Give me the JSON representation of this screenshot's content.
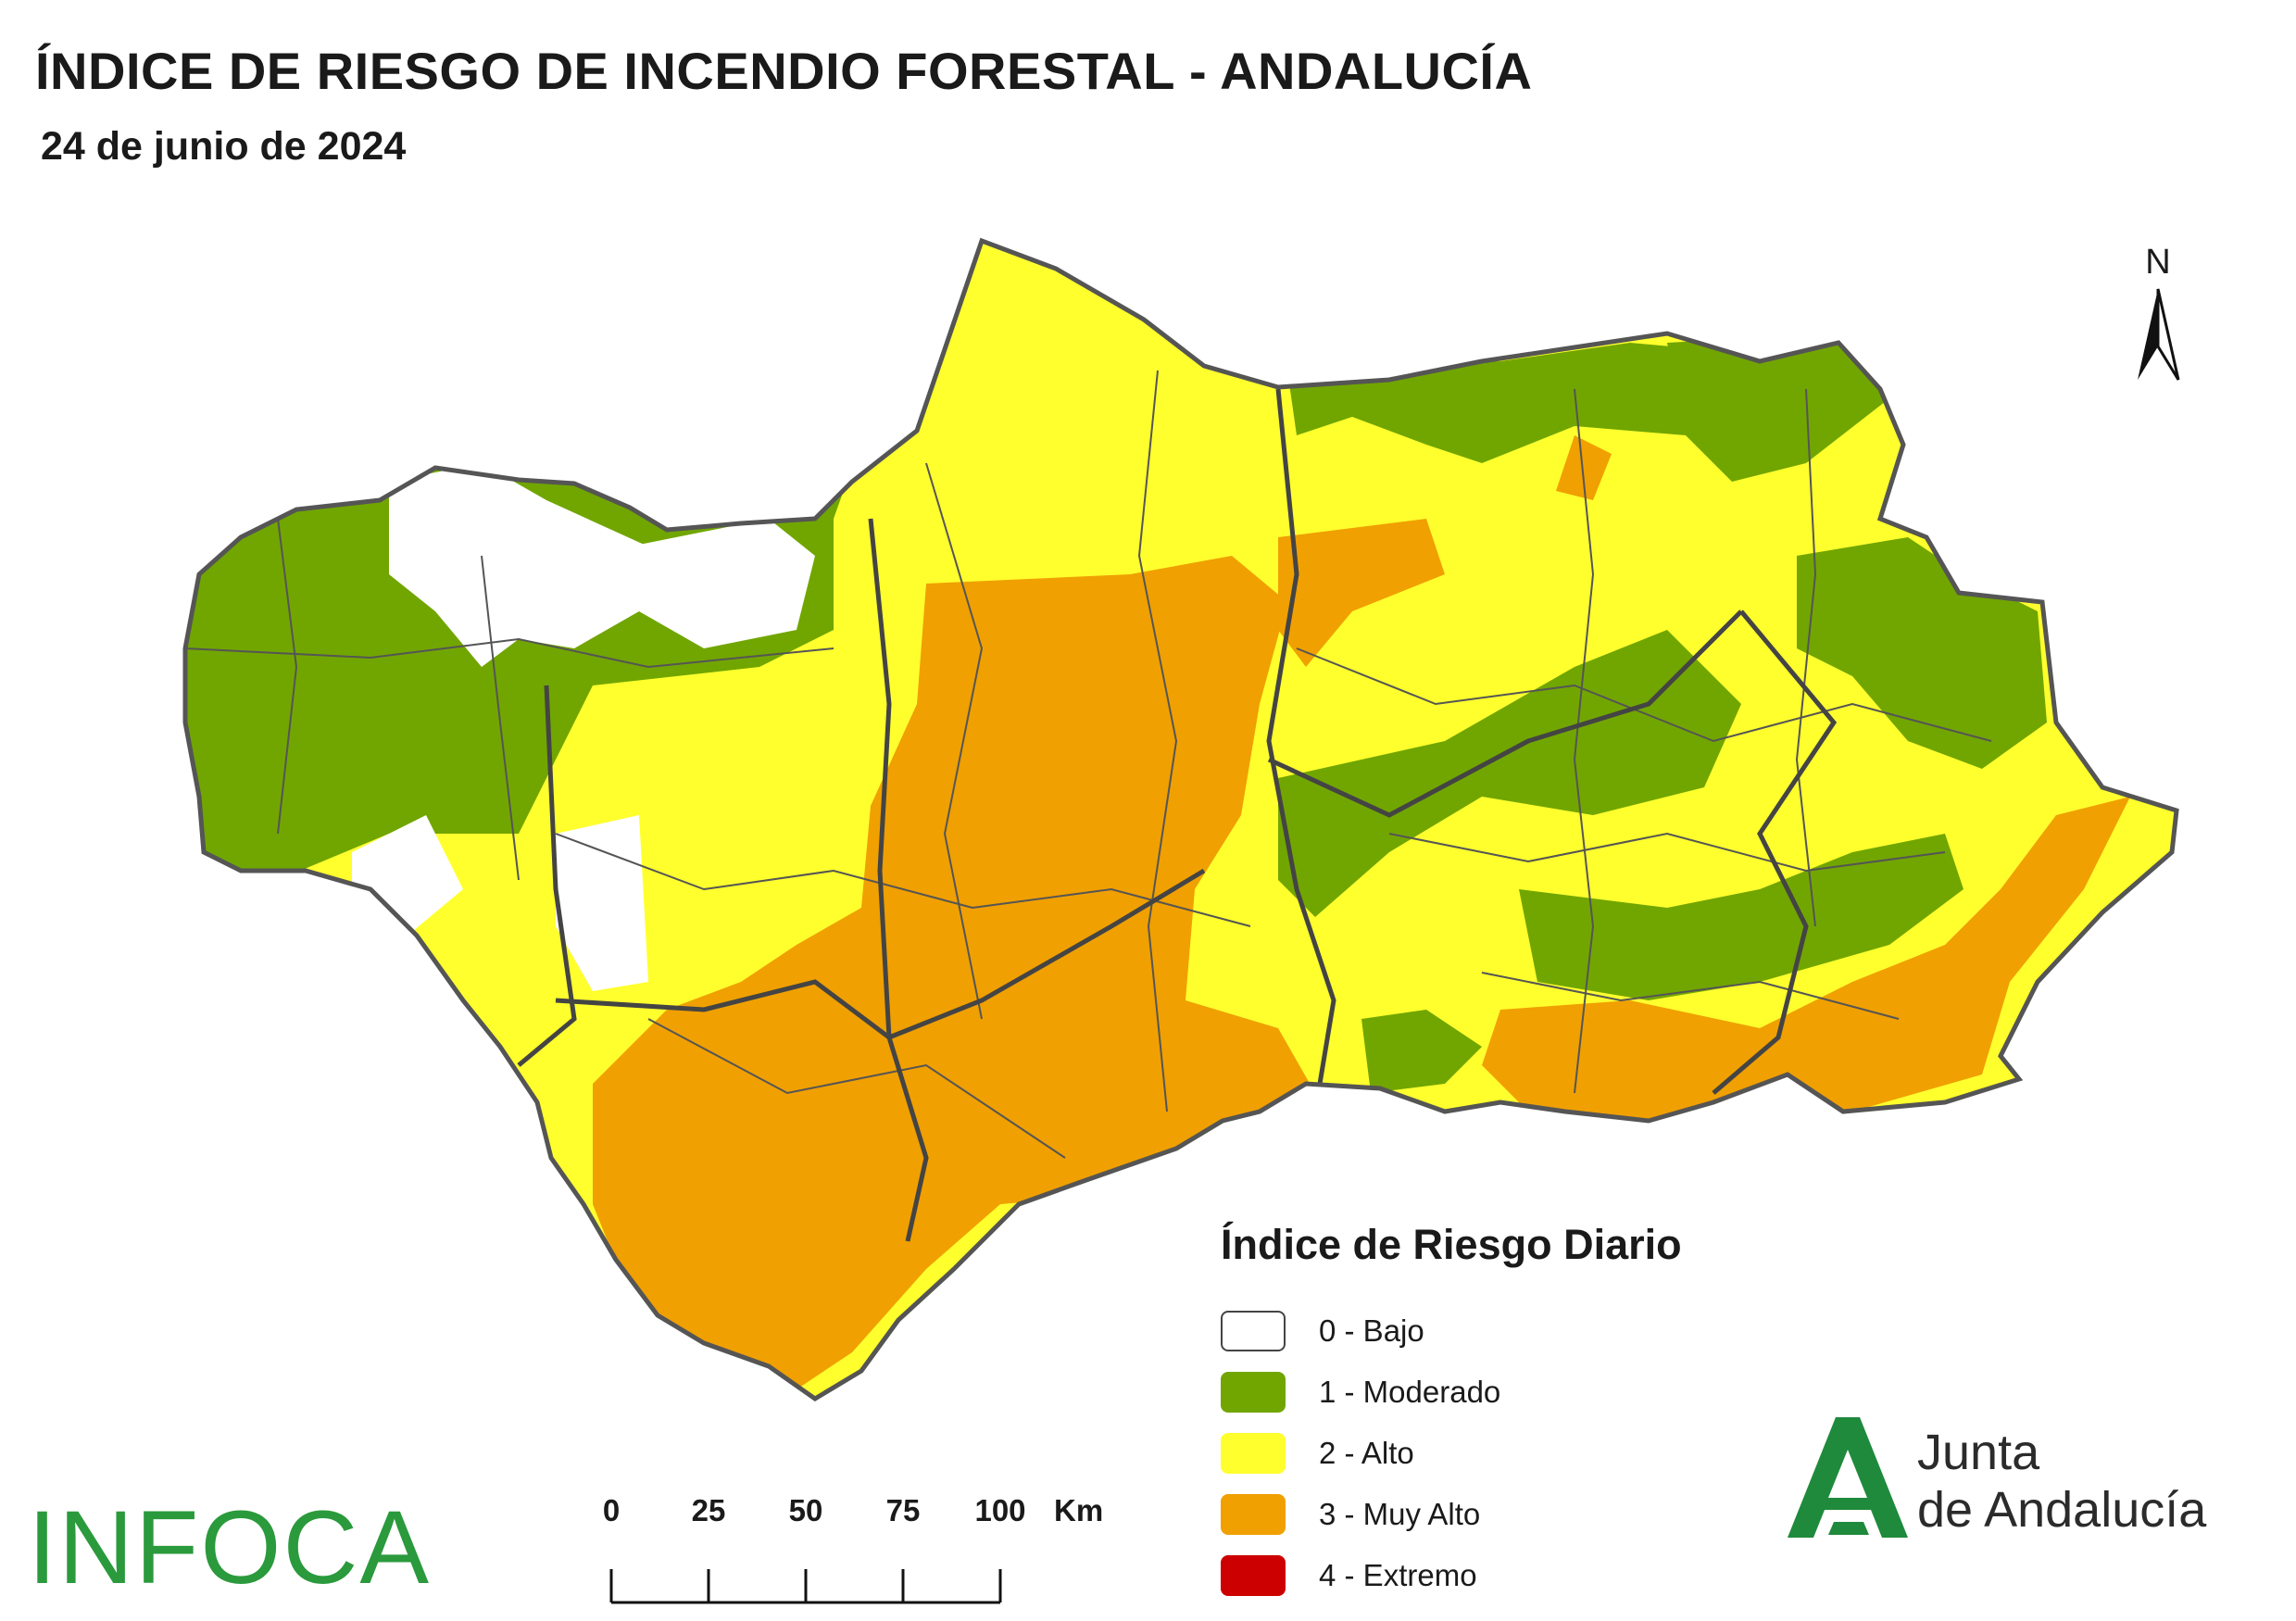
{
  "title": "ÍNDICE DE RIESGO DE INCENDIO FORESTAL - ANDALUCÍA",
  "subtitle": "24 de junio de 2024",
  "north_arrow": {
    "label": "N"
  },
  "legend": {
    "title": "Índice de Riesgo Diario",
    "items": [
      {
        "label": "0 - Bajo",
        "color": "#ffffff"
      },
      {
        "label": "1 - Moderado",
        "color": "#71a600"
      },
      {
        "label": "2 - Alto",
        "color": "#ffff2e"
      },
      {
        "label": "3 - Muy Alto",
        "color": "#f0a000"
      },
      {
        "label": "4 - Extremo",
        "color": "#cc0000"
      }
    ]
  },
  "scale_bar": {
    "ticks": [
      "0",
      "25",
      "50",
      "75",
      "100"
    ],
    "unit": "Km"
  },
  "logos": {
    "infoca": "INFOCA",
    "junta_line1": "Junta",
    "junta_line2": "de Andalucía"
  }
}
